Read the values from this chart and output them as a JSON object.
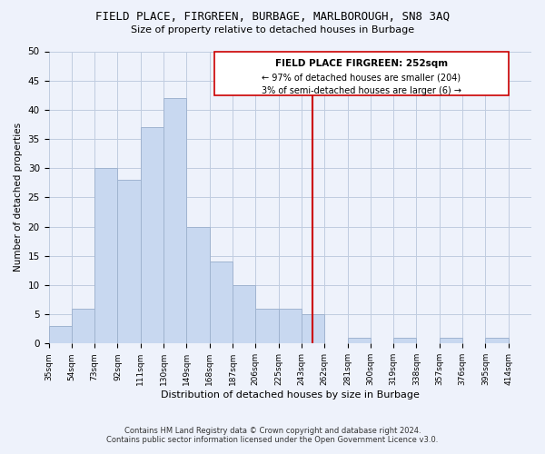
{
  "title": "FIELD PLACE, FIRGREEN, BURBAGE, MARLBOROUGH, SN8 3AQ",
  "subtitle": "Size of property relative to detached houses in Burbage",
  "xlabel": "Distribution of detached houses by size in Burbage",
  "ylabel": "Number of detached properties",
  "bin_labels": [
    "35sqm",
    "54sqm",
    "73sqm",
    "92sqm",
    "111sqm",
    "130sqm",
    "149sqm",
    "168sqm",
    "187sqm",
    "206sqm",
    "225sqm",
    "243sqm",
    "262sqm",
    "281sqm",
    "300sqm",
    "319sqm",
    "338sqm",
    "357sqm",
    "376sqm",
    "395sqm",
    "414sqm"
  ],
  "bar_values": [
    3,
    6,
    30,
    28,
    37,
    42,
    20,
    14,
    10,
    6,
    6,
    5,
    0,
    1,
    0,
    1,
    0,
    1,
    0,
    1,
    0
  ],
  "bar_color": "#c8d8f0",
  "bar_edge_color": "#a0b4d0",
  "vline_color": "#cc0000",
  "bin_edges_values": [
    35,
    54,
    73,
    92,
    111,
    130,
    149,
    168,
    187,
    206,
    225,
    243,
    262,
    281,
    300,
    319,
    338,
    357,
    376,
    395,
    414
  ],
  "vline_val": 252,
  "annotation_title": "FIELD PLACE FIRGREEN: 252sqm",
  "annotation_line1": "← 97% of detached houses are smaller (204)",
  "annotation_line2": "3% of semi-detached houses are larger (6) →",
  "ylim": [
    0,
    50
  ],
  "yticks": [
    0,
    5,
    10,
    15,
    20,
    25,
    30,
    35,
    40,
    45,
    50
  ],
  "footer_line1": "Contains HM Land Registry data © Crown copyright and database right 2024.",
  "footer_line2": "Contains public sector information licensed under the Open Government Licence v3.0.",
  "bg_color": "#eef2fb",
  "grid_color": "#c0cce0"
}
